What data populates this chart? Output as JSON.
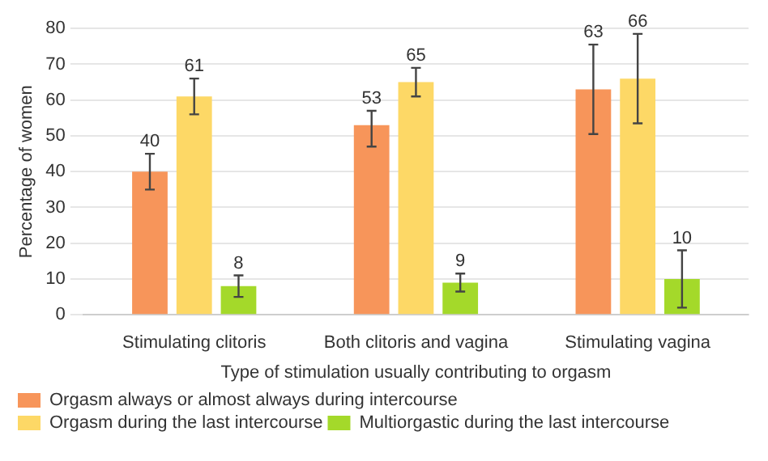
{
  "chart_data": {
    "type": "bar",
    "xlabel": "Type of stimulation usually contributing to orgasm",
    "ylabel": "Percentage of women",
    "categories": [
      "Stimulating clitoris",
      "Both clitoris and vagina",
      "Stimulating vagina"
    ],
    "series": [
      {
        "name": "Orgasm always or almost always during intercourse",
        "color": "#f7955a",
        "values": [
          40,
          53,
          63
        ],
        "errors": [
          [
            35,
            45
          ],
          [
            47,
            57
          ],
          [
            50.5,
            75.5
          ]
        ]
      },
      {
        "name": "Orgasm during the last intercourse",
        "color": "#fdd866",
        "values": [
          61,
          65,
          66
        ],
        "errors": [
          [
            56,
            66
          ],
          [
            61,
            69
          ],
          [
            53.5,
            78.5
          ]
        ]
      },
      {
        "name": "Multiorgastic during the last intercourse",
        "color": "#a4d92a",
        "values": [
          8,
          9,
          10
        ],
        "errors": [
          [
            5,
            11
          ],
          [
            6.5,
            11.5
          ],
          [
            2,
            18
          ]
        ]
      }
    ],
    "ylim": [
      0,
      80
    ],
    "yticks": [
      0,
      10,
      20,
      30,
      40,
      50,
      60,
      70,
      80
    ],
    "grid": "y",
    "legend": "bottom",
    "data_labels": true
  }
}
